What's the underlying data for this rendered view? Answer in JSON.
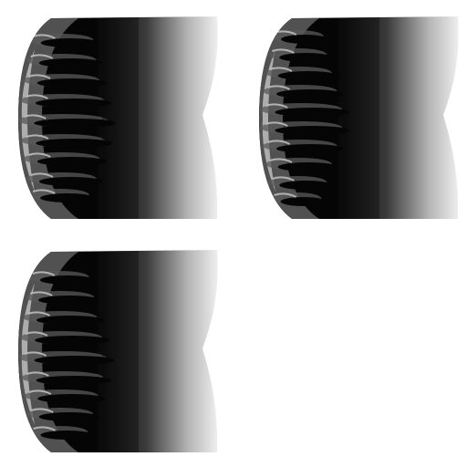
{
  "grid": {
    "columns": 2,
    "rows": 2,
    "filled_cells": 3,
    "background": "#ffffff"
  },
  "panels": [
    {
      "id": "panel-1",
      "variant": "A",
      "cell": [
        0,
        0
      ]
    },
    {
      "id": "panel-2",
      "variant": "B",
      "cell": [
        1,
        0
      ]
    },
    {
      "id": "panel-3",
      "variant": "C",
      "cell": [
        0,
        1
      ]
    }
  ],
  "colors": {
    "dark": "#050505",
    "mid_gray": "#5a5a5a",
    "light_gray": "#bdbdbd",
    "fade": "#ffffff"
  }
}
